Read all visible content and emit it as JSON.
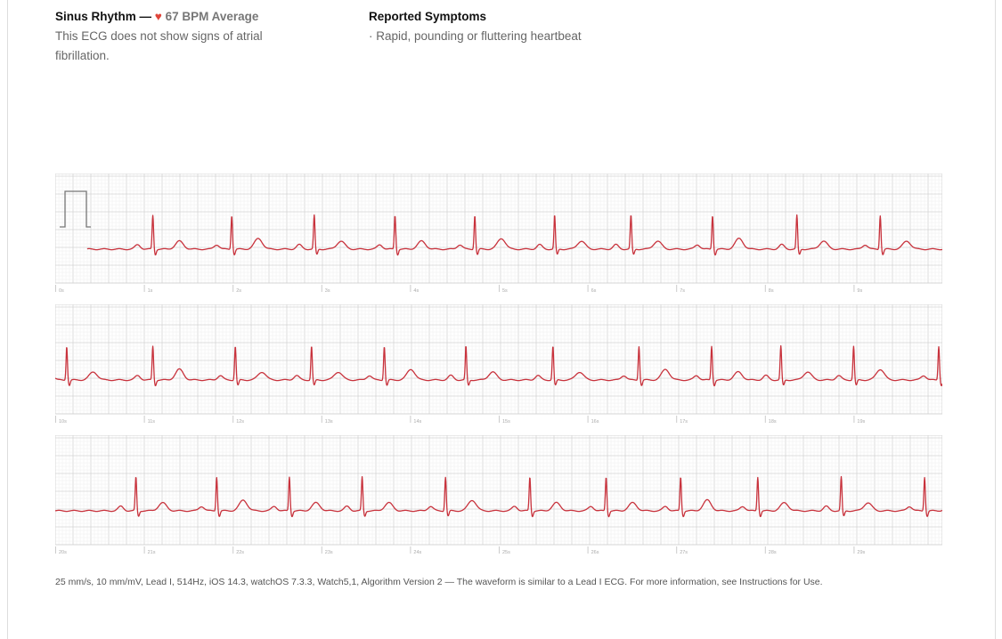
{
  "summary": {
    "rhythm": "Sinus Rhythm —",
    "heart_icon": "heart-icon",
    "average": "67 BPM Average",
    "description": "This ECG does not show signs of atrial fibrillation."
  },
  "symptoms": {
    "title": "Reported Symptoms",
    "items": [
      "· Rapid, pounding or fluttering heartbeat"
    ]
  },
  "footer": "25 mm/s, 10 mm/mV, Lead I, 514Hz, iOS 14.3, watchOS 7.3.3, Watch5,1, Algorithm Version 2 — The waveform is similar to a Lead I ECG. For more information, see Instructions for Use.",
  "colors": {
    "trace": "#c8323c",
    "grid_minor": "#eeeeee",
    "grid_major": "#d4d4d4",
    "heart": "#e0453a"
  },
  "chart_data": [
    {
      "type": "line",
      "xlabel": "",
      "ylabel": "",
      "seconds": [
        0,
        10
      ],
      "tick_labels": [
        "0s",
        "1s",
        "2s",
        "3s",
        "4s",
        "5s",
        "6s",
        "7s",
        "8s",
        "9s"
      ],
      "r_peak_times": [
        1.1,
        1.99,
        2.92,
        3.83,
        4.73,
        5.63,
        6.49,
        7.41,
        8.36,
        9.3
      ],
      "calibration_pulse": true
    },
    {
      "type": "line",
      "xlabel": "",
      "ylabel": "",
      "seconds": [
        10,
        20
      ],
      "tick_labels": [
        "10s",
        "11s",
        "12s",
        "13s",
        "14s",
        "15s",
        "16s",
        "17s",
        "18s",
        "19s"
      ],
      "r_peak_times": [
        10.13,
        11.1,
        12.03,
        12.89,
        13.71,
        14.63,
        15.61,
        16.58,
        17.4,
        18.18,
        19.0,
        19.96
      ]
    },
    {
      "type": "line",
      "xlabel": "",
      "ylabel": "",
      "seconds": [
        20,
        30
      ],
      "tick_labels": [
        "20s",
        "21s",
        "22s",
        "23s",
        "24s",
        "25s",
        "26s",
        "27s",
        "28s",
        "29s"
      ],
      "r_peak_times": [
        20.91,
        21.82,
        22.64,
        23.46,
        24.4,
        25.35,
        26.21,
        27.05,
        27.92,
        28.86,
        29.8
      ]
    }
  ]
}
